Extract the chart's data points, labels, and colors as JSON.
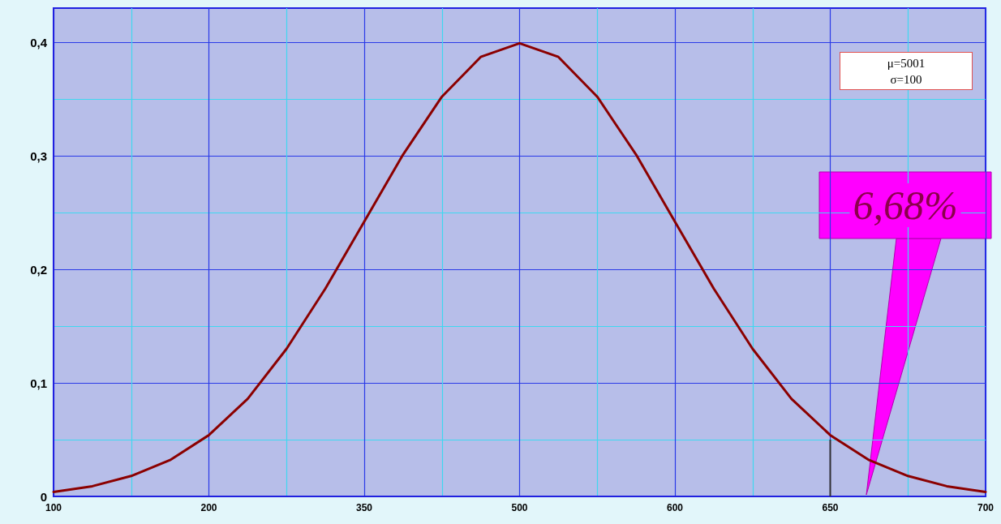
{
  "chart_data": {
    "type": "line",
    "categories": [
      "100",
      null,
      null,
      null,
      "200",
      null,
      null,
      null,
      "350",
      null,
      null,
      null,
      "500",
      null,
      null,
      null,
      "600",
      null,
      null,
      null,
      "650",
      null,
      null,
      null,
      "700"
    ],
    "ylim": [
      0,
      0.43
    ],
    "yticks": [
      0,
      {
        "value": 0.1,
        "label": "0,1"
      },
      {
        "value": 0.2,
        "label": "0,2"
      },
      {
        "value": 0.3,
        "label": "0,3"
      },
      {
        "value": 0.4,
        "label": "0,4"
      }
    ],
    "grid": true,
    "marker": "none",
    "line_style": "solid",
    "series": [
      {
        "color": "#8b0000",
        "values": [
          0.004,
          0.009,
          0.018,
          0.032,
          0.054,
          0.086,
          0.13,
          0.183,
          0.242,
          0.301,
          0.352,
          0.387,
          0.399,
          0.387,
          0.352,
          0.301,
          0.242,
          0.183,
          0.13,
          0.086,
          0.054,
          0.032,
          0.018,
          0.009,
          0.004
        ]
      },
      {
        "type": "bar",
        "color": "#333333",
        "values": [
          null,
          null,
          null,
          null,
          null,
          null,
          null,
          null,
          null,
          null,
          null,
          null,
          null,
          null,
          null,
          null,
          null,
          null,
          null,
          null,
          0.05,
          null,
          null,
          null,
          null
        ]
      }
    ],
    "annotations": [
      "μ=5001\nσ=100",
      "6,68%"
    ]
  }
}
